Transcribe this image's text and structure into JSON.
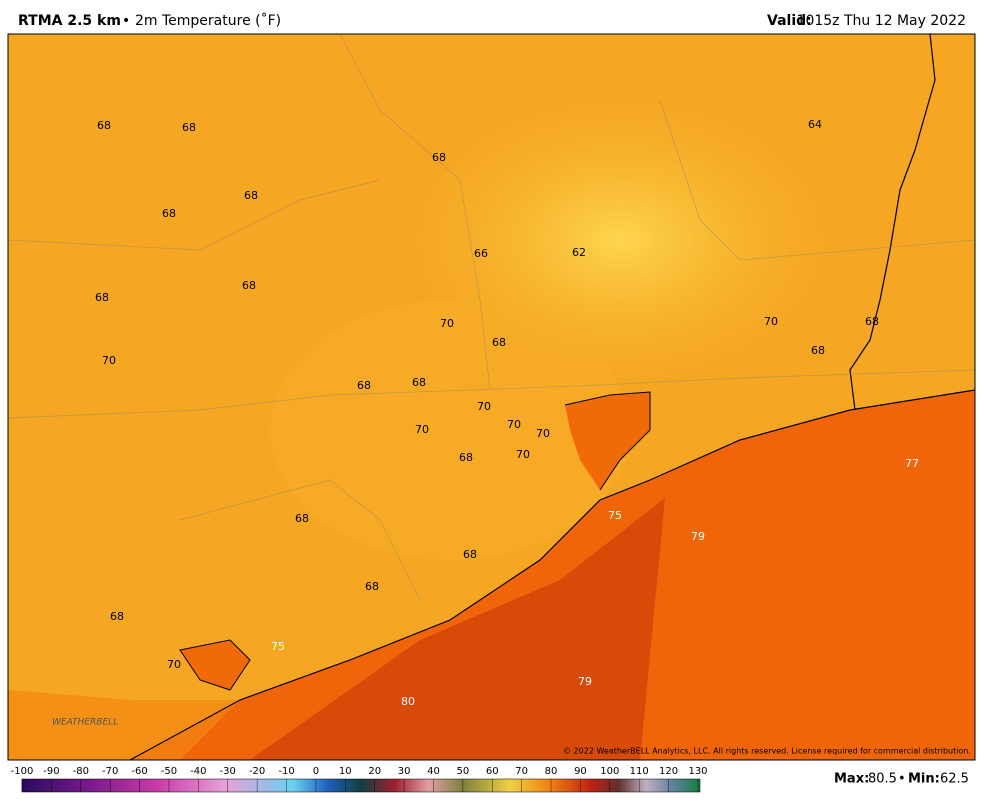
{
  "header": {
    "model": "RTMA 2.5 km",
    "separator": "•",
    "field": "2m Temperature (˚F)",
    "valid_label": "Valid:",
    "valid_time": "1015z Thu 12 May 2022"
  },
  "map": {
    "labels": [
      68,
      68,
      68,
      64,
      68,
      68,
      66,
      62,
      68,
      68,
      70,
      70,
      68,
      68,
      68,
      70,
      68,
      68,
      70,
      70,
      70,
      70,
      68,
      70,
      77,
      75,
      68,
      79,
      68,
      68,
      68,
      75,
      70,
      79,
      80
    ],
    "copyright": "© 2022 WeatherBELL Analytics, LLC. All rights reserved. License required for commercial distribution.",
    "logo": "WEATHERBELL"
  },
  "colorbar": {
    "ticks": [
      -100,
      -90,
      -80,
      -70,
      -60,
      -50,
      -40,
      -30,
      -20,
      -10,
      0,
      10,
      20,
      30,
      40,
      50,
      60,
      70,
      80,
      90,
      100,
      110,
      120,
      130
    ]
  },
  "stats": {
    "max_label": "Max:",
    "max": 80.5,
    "separator": "•",
    "min_label": "Min:",
    "min": 62.5
  }
}
